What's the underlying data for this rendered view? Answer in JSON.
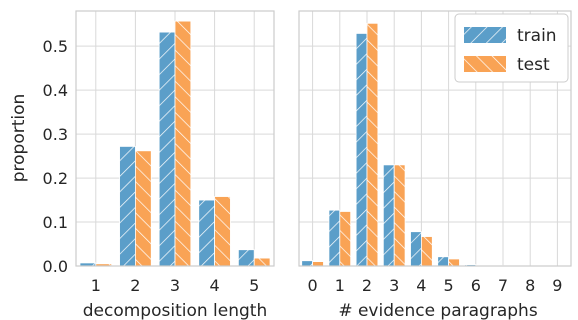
{
  "chart_data": [
    {
      "type": "bar",
      "xlabel": "decomposition length",
      "ylabel": "proportion",
      "categories": [
        "1",
        "2",
        "3",
        "4",
        "5"
      ],
      "ylim": [
        0,
        0.58
      ],
      "yticks": [
        "0.0",
        "0.1",
        "0.2",
        "0.3",
        "0.4",
        "0.5"
      ],
      "grid": true,
      "series": [
        {
          "name": "train",
          "values": [
            0.007,
            0.272,
            0.532,
            0.15,
            0.037
          ]
        },
        {
          "name": "test",
          "values": [
            0.005,
            0.262,
            0.557,
            0.158,
            0.018
          ]
        }
      ]
    },
    {
      "type": "bar",
      "xlabel": "# evidence paragraphs",
      "ylabel": "",
      "categories": [
        "0",
        "1",
        "2",
        "3",
        "4",
        "5",
        "6",
        "7",
        "8",
        "9"
      ],
      "ylim": [
        0,
        0.58
      ],
      "grid": true,
      "legend": "top-right",
      "series": [
        {
          "name": "train",
          "values": [
            0.012,
            0.127,
            0.529,
            0.23,
            0.078,
            0.021,
            0.003,
            0.001,
            0.0,
            0.0
          ]
        },
        {
          "name": "test",
          "values": [
            0.01,
            0.124,
            0.552,
            0.23,
            0.067,
            0.016,
            0.002,
            0.0,
            0.0,
            0.0
          ]
        }
      ]
    }
  ],
  "colors": {
    "train": "#5b9ec9",
    "test": "#f9a355",
    "grid": "#d9d9d9",
    "axis": "#cccccc"
  },
  "legend": {
    "train_label": "train",
    "test_label": "test"
  }
}
